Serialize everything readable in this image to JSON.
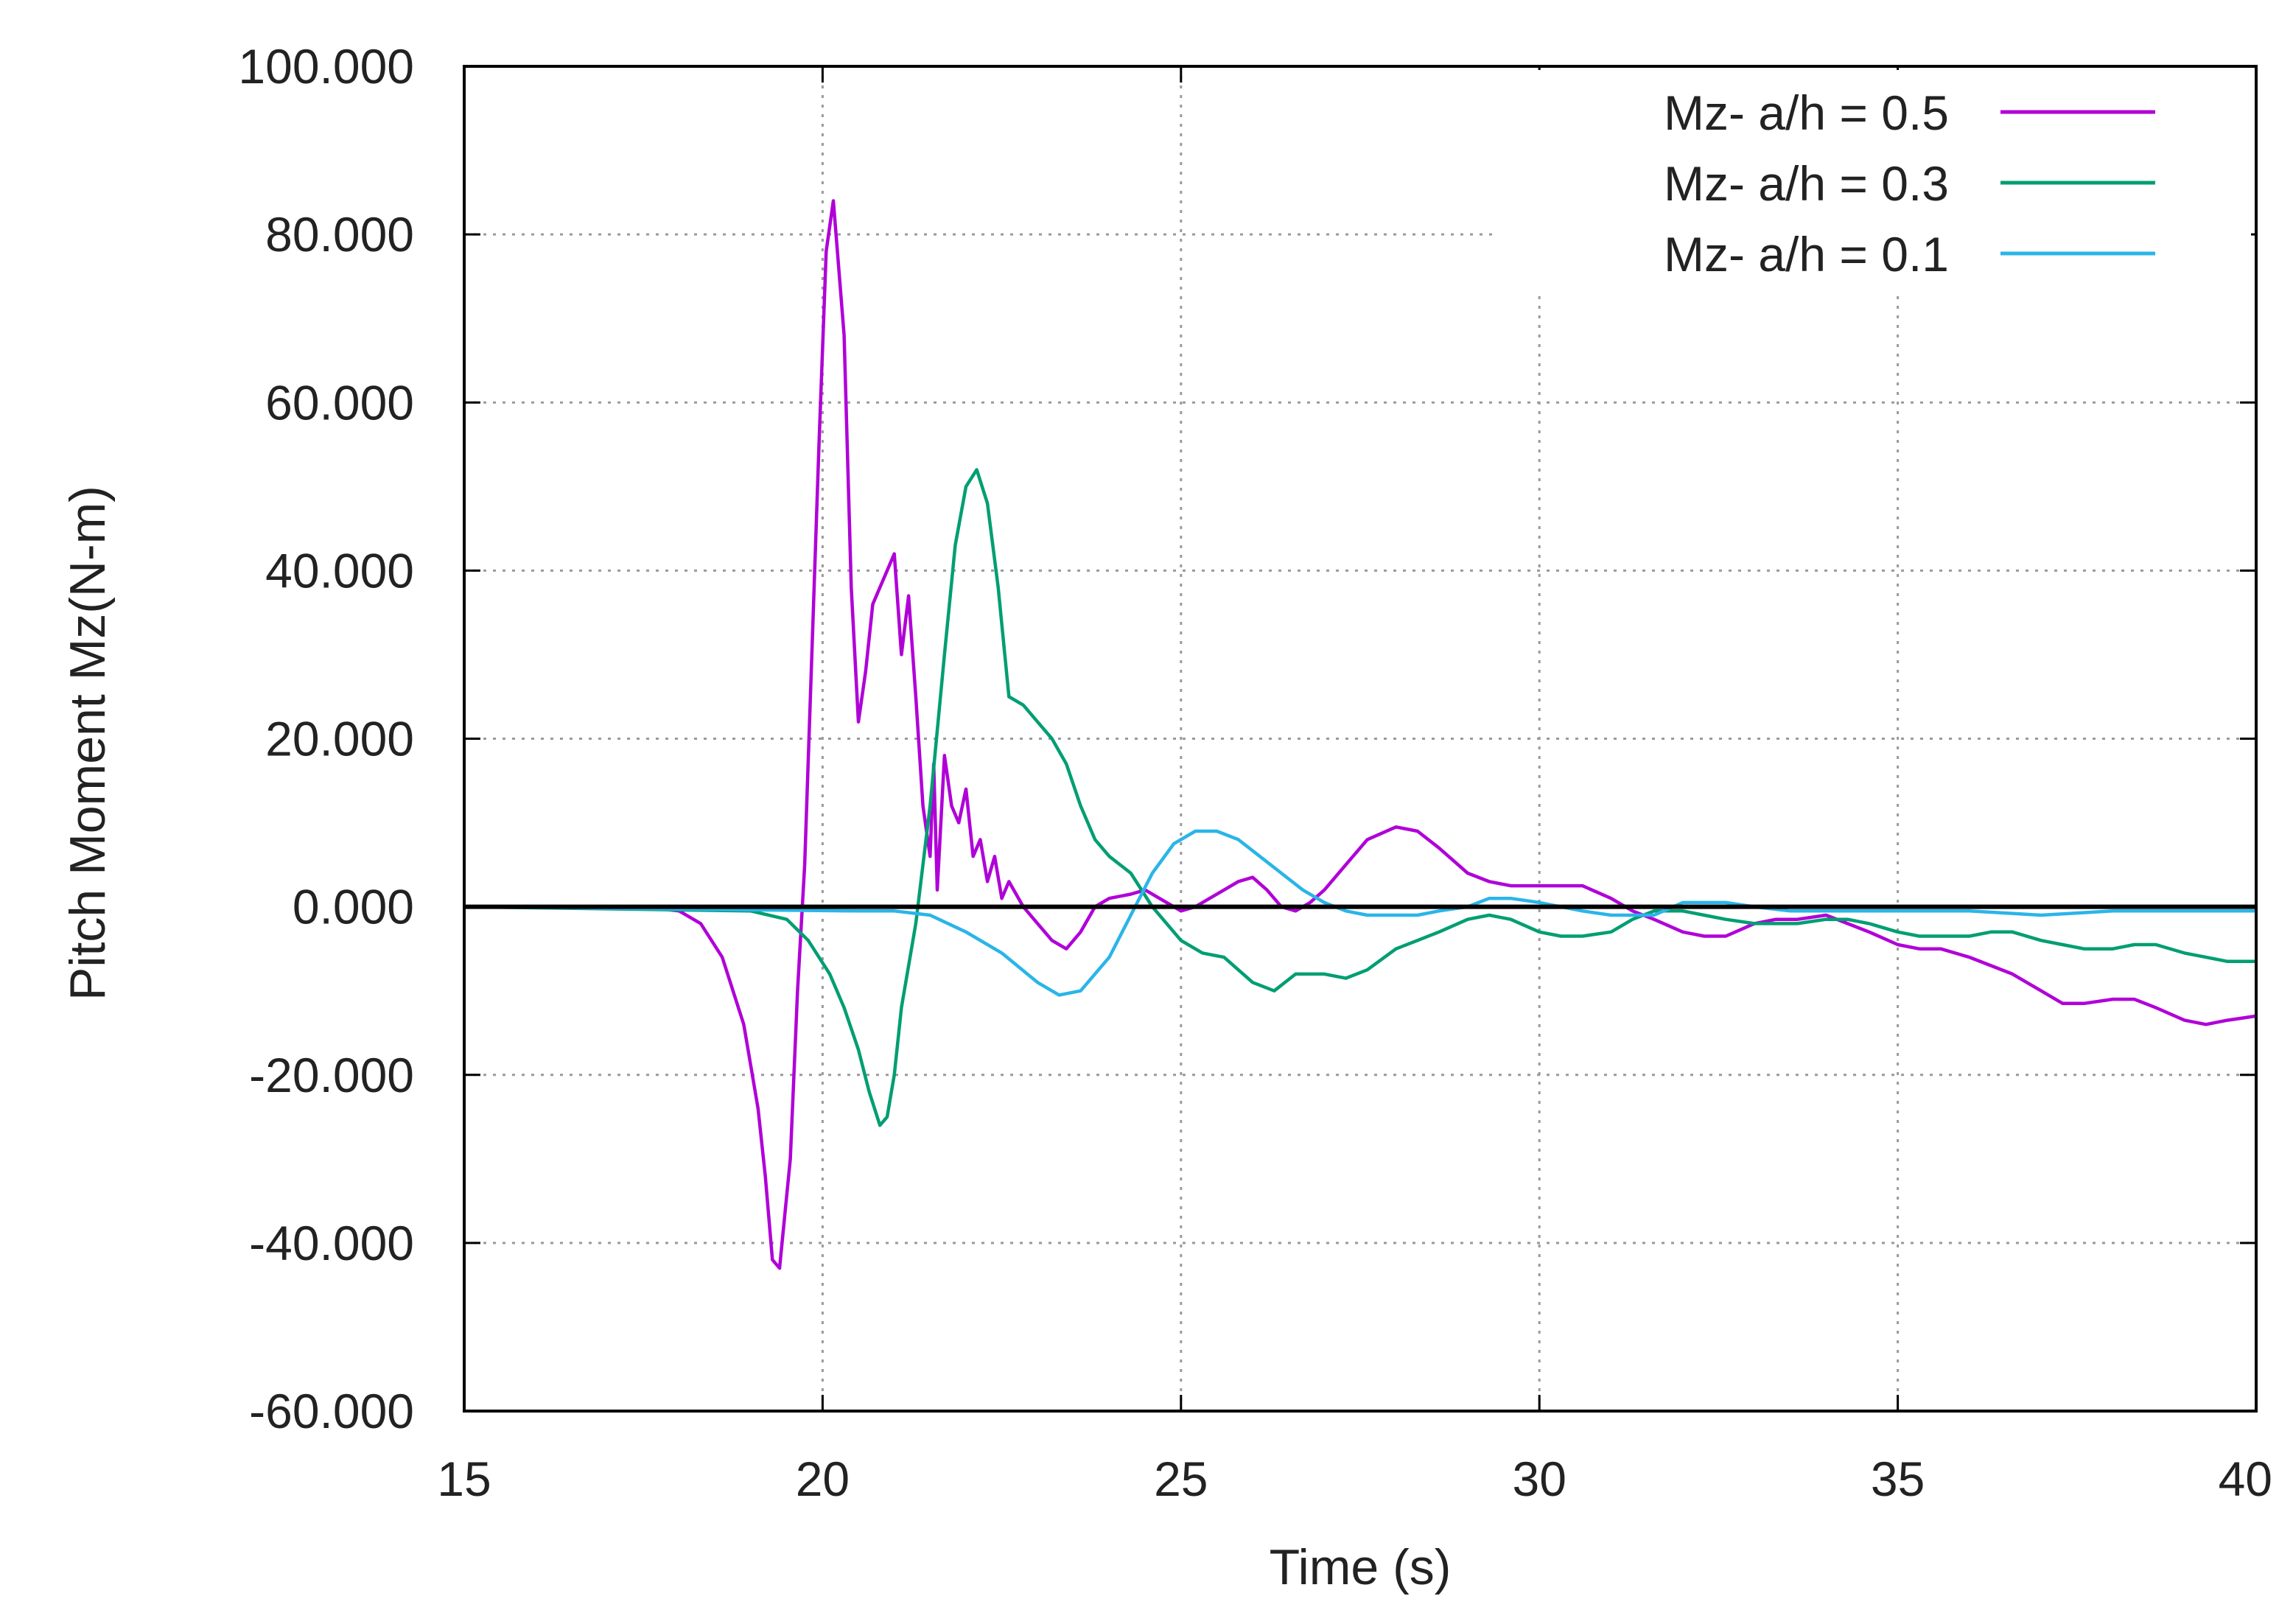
{
  "chart_data": {
    "type": "line",
    "title": "",
    "xlabel": "Time (s)",
    "ylabel": "Pitch Moment Mz(N-m)",
    "xlim": [
      15,
      40
    ],
    "ylim": [
      -60,
      100
    ],
    "grid": true,
    "legend_position": "top-right",
    "x_ticks": [
      15,
      20,
      25,
      30,
      35,
      40
    ],
    "x_tick_labels": [
      "15",
      "20",
      "25",
      "30",
      "35",
      "40"
    ],
    "y_ticks": [
      -60,
      -40,
      -20,
      0,
      20,
      40,
      60,
      80,
      100
    ],
    "y_tick_labels": [
      "-60.000",
      "-40.000",
      "-20.000",
      "0.000",
      "20.000",
      "40.000",
      "60.000",
      "80.000",
      "100.000"
    ],
    "zero_line": true,
    "series": [
      {
        "name": "Mz- a/h = 0.5",
        "color": "#b000d8",
        "x": [
          15,
          17.5,
          18,
          18.3,
          18.6,
          18.9,
          19.1,
          19.2,
          19.3,
          19.4,
          19.55,
          19.65,
          19.75,
          19.85,
          19.95,
          20.05,
          20.15,
          20.3,
          20.4,
          20.5,
          20.6,
          20.7,
          20.8,
          20.9,
          21.0,
          21.1,
          21.2,
          21.3,
          21.4,
          21.5,
          21.55,
          21.6,
          21.7,
          21.8,
          21.9,
          22.0,
          22.1,
          22.2,
          22.3,
          22.4,
          22.5,
          22.6,
          22.8,
          23.0,
          23.2,
          23.4,
          23.6,
          23.8,
          24.0,
          24.3,
          24.5,
          24.7,
          24.9,
          25.0,
          25.2,
          25.4,
          25.6,
          25.8,
          26.0,
          26.2,
          26.4,
          26.6,
          26.8,
          27.0,
          27.3,
          27.6,
          28.0,
          28.3,
          28.6,
          29.0,
          29.3,
          29.6,
          30.0,
          30.3,
          30.6,
          31.0,
          31.3,
          31.6,
          32.0,
          32.3,
          32.6,
          33.0,
          33.3,
          33.6,
          34.0,
          34.3,
          34.6,
          35.0,
          35.3,
          35.6,
          36.0,
          36.3,
          36.6,
          37.0,
          37.3,
          37.6,
          38.0,
          38.3,
          38.6,
          39.0,
          39.3,
          39.6,
          40.0
        ],
        "y": [
          0,
          0,
          -0.5,
          -2,
          -6,
          -14,
          -24,
          -32,
          -42,
          -43,
          -30,
          -10,
          5,
          30,
          55,
          78,
          84,
          68,
          38,
          22,
          28,
          36,
          38,
          40,
          42,
          30,
          37,
          25,
          12,
          6,
          17,
          2,
          18,
          12,
          10,
          14,
          6,
          8,
          3,
          6,
          1,
          3,
          0,
          -2,
          -4,
          -5,
          -3,
          0,
          1,
          1.5,
          2,
          1,
          0,
          -0.5,
          0,
          1,
          2,
          3,
          3.5,
          2,
          0,
          -0.5,
          0.5,
          2,
          5,
          8,
          9.5,
          9,
          7,
          4,
          3,
          2.5,
          2.5,
          2.5,
          2.5,
          1,
          -0.5,
          -1.5,
          -3,
          -3.5,
          -3.5,
          -2,
          -1.5,
          -1.5,
          -1,
          -2,
          -3,
          -4.5,
          -5,
          -5,
          -6,
          -7,
          -8,
          -10,
          -11.5,
          -11.5,
          -11,
          -11,
          -12,
          -13.5,
          -14,
          -13.5,
          -13
        ]
      },
      {
        "name": "Mz- a/h = 0.3",
        "color": "#009e73",
        "x": [
          15,
          19.0,
          19.5,
          19.8,
          20.1,
          20.3,
          20.5,
          20.65,
          20.8,
          20.9,
          21.0,
          21.1,
          21.3,
          21.5,
          21.7,
          21.85,
          22.0,
          22.15,
          22.3,
          22.45,
          22.6,
          22.8,
          23.0,
          23.2,
          23.4,
          23.6,
          23.8,
          24.0,
          24.3,
          24.6,
          25.0,
          25.3,
          25.6,
          26.0,
          26.3,
          26.6,
          27.0,
          27.3,
          27.6,
          28.0,
          28.3,
          28.6,
          29.0,
          29.3,
          29.6,
          30.0,
          30.3,
          30.6,
          31.0,
          31.3,
          31.6,
          32.0,
          32.3,
          32.6,
          33.0,
          33.3,
          33.6,
          34.0,
          34.3,
          34.6,
          35.0,
          35.3,
          35.6,
          36.0,
          36.3,
          36.6,
          37.0,
          37.3,
          37.6,
          38.0,
          38.3,
          38.6,
          39.0,
          39.3,
          39.6,
          40.0
        ],
        "y": [
          0,
          -0.5,
          -1.5,
          -4,
          -8,
          -12,
          -17,
          -22,
          -26,
          -25,
          -20,
          -12,
          -2,
          12,
          30,
          43,
          50,
          52,
          48,
          38,
          25,
          24,
          22,
          20,
          17,
          12,
          8,
          6,
          4,
          0,
          -4,
          -5.5,
          -6,
          -9,
          -10,
          -8,
          -8,
          -8.5,
          -7.5,
          -5,
          -4,
          -3,
          -1.5,
          -1,
          -1.5,
          -3,
          -3.5,
          -3.5,
          -3,
          -1.5,
          -0.5,
          -0.5,
          -1,
          -1.5,
          -2,
          -2,
          -2,
          -1.5,
          -1.5,
          -2,
          -3,
          -3.5,
          -3.5,
          -3.5,
          -3,
          -3,
          -4,
          -4.5,
          -5,
          -5,
          -4.5,
          -4.5,
          -5.5,
          -6,
          -6.5,
          -6.5
        ]
      },
      {
        "name": "Mz- a/h = 0.1",
        "color": "#2ab5e8",
        "x": [
          15,
          20.5,
          21.0,
          21.5,
          22.0,
          22.5,
          23.0,
          23.3,
          23.6,
          24.0,
          24.3,
          24.6,
          24.9,
          25.2,
          25.5,
          25.8,
          26.1,
          26.4,
          26.7,
          27.0,
          27.3,
          27.6,
          28.0,
          28.3,
          28.6,
          29.0,
          29.3,
          29.6,
          30.0,
          30.3,
          30.6,
          31.0,
          31.3,
          31.6,
          32.0,
          32.3,
          32.6,
          33.0,
          33.5,
          34.0,
          35.0,
          36.0,
          37.0,
          38.0,
          39.0,
          40.0
        ],
        "y": [
          0,
          -0.5,
          -0.5,
          -1,
          -3,
          -5.5,
          -9,
          -10.5,
          -10,
          -6,
          -1,
          4,
          7.5,
          9,
          9,
          8,
          6,
          4,
          2,
          0.5,
          -0.5,
          -1,
          -1,
          -1,
          -0.5,
          0,
          1,
          1,
          0.5,
          0,
          -0.5,
          -1,
          -1,
          -1,
          0.5,
          0.5,
          0.5,
          0,
          -0.5,
          -0.5,
          -0.5,
          -0.5,
          -1,
          -0.5,
          -0.5,
          -0.5
        ]
      }
    ]
  }
}
